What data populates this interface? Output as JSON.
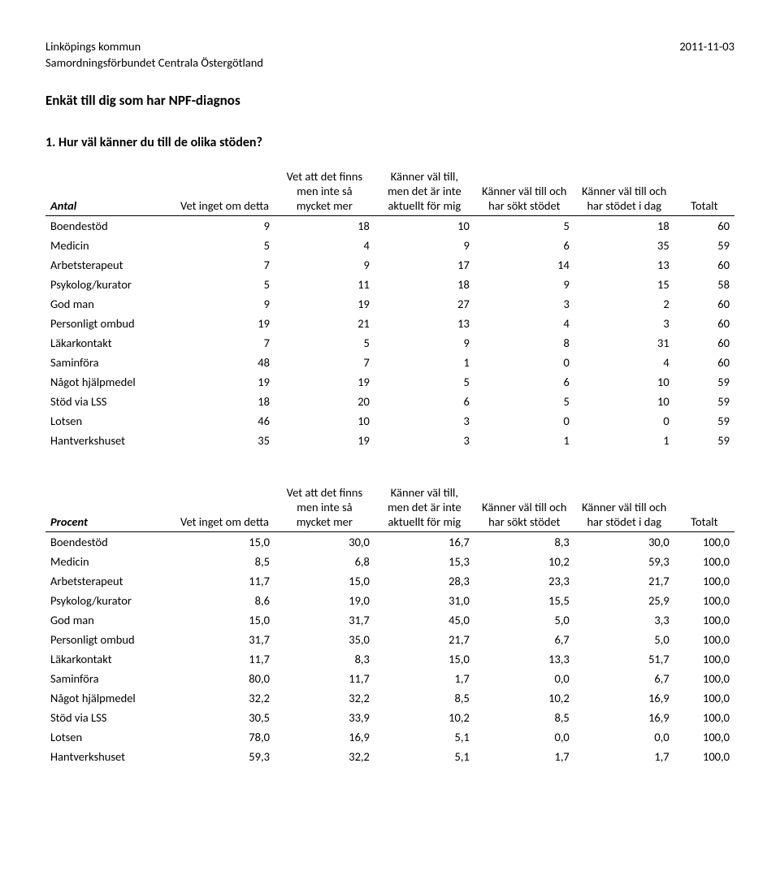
{
  "header": {
    "org_line1": "Linköpings kommun",
    "org_line2": "Samordningsförbundet Centrala Östergötland",
    "date": "2011-11-03",
    "survey_title": "Enkät till dig som har NPF-diagnos",
    "question": "1. Hur väl känner du till de olika stöden?"
  },
  "columns": {
    "c1": "Vet inget om detta",
    "c2": "Vet att det finns men inte så mycket mer",
    "c3": "Känner väl till, men det är inte aktuellt för mig",
    "c4": "Känner väl till och har sökt stödet",
    "c5": "Känner väl till och har stödet i dag",
    "total": "Totalt"
  },
  "tables": {
    "antal": {
      "corner": "Antal",
      "rows": [
        {
          "label": "Boendestöd",
          "v": [
            "9",
            "18",
            "10",
            "5",
            "18",
            "60"
          ]
        },
        {
          "label": "Medicin",
          "v": [
            "5",
            "4",
            "9",
            "6",
            "35",
            "59"
          ]
        },
        {
          "label": "Arbetsterapeut",
          "v": [
            "7",
            "9",
            "17",
            "14",
            "13",
            "60"
          ]
        },
        {
          "label": "Psykolog/kurator",
          "v": [
            "5",
            "11",
            "18",
            "9",
            "15",
            "58"
          ]
        },
        {
          "label": "God man",
          "v": [
            "9",
            "19",
            "27",
            "3",
            "2",
            "60"
          ]
        },
        {
          "label": "Personligt ombud",
          "v": [
            "19",
            "21",
            "13",
            "4",
            "3",
            "60"
          ]
        },
        {
          "label": "Läkarkontakt",
          "v": [
            "7",
            "5",
            "9",
            "8",
            "31",
            "60"
          ]
        },
        {
          "label": "Saminföra",
          "v": [
            "48",
            "7",
            "1",
            "0",
            "4",
            "60"
          ]
        },
        {
          "label": "Något hjälpmedel",
          "v": [
            "19",
            "19",
            "5",
            "6",
            "10",
            "59"
          ]
        },
        {
          "label": "Stöd via LSS",
          "v": [
            "18",
            "20",
            "6",
            "5",
            "10",
            "59"
          ]
        },
        {
          "label": "Lotsen",
          "v": [
            "46",
            "10",
            "3",
            "0",
            "0",
            "59"
          ]
        },
        {
          "label": "Hantverkshuset",
          "v": [
            "35",
            "19",
            "3",
            "1",
            "1",
            "59"
          ]
        }
      ]
    },
    "procent": {
      "corner": "Procent",
      "rows": [
        {
          "label": "Boendestöd",
          "v": [
            "15,0",
            "30,0",
            "16,7",
            "8,3",
            "30,0",
            "100,0"
          ]
        },
        {
          "label": "Medicin",
          "v": [
            "8,5",
            "6,8",
            "15,3",
            "10,2",
            "59,3",
            "100,0"
          ]
        },
        {
          "label": "Arbetsterapeut",
          "v": [
            "11,7",
            "15,0",
            "28,3",
            "23,3",
            "21,7",
            "100,0"
          ]
        },
        {
          "label": "Psykolog/kurator",
          "v": [
            "8,6",
            "19,0",
            "31,0",
            "15,5",
            "25,9",
            "100,0"
          ]
        },
        {
          "label": "God man",
          "v": [
            "15,0",
            "31,7",
            "45,0",
            "5,0",
            "3,3",
            "100,0"
          ]
        },
        {
          "label": "Personligt ombud",
          "v": [
            "31,7",
            "35,0",
            "21,7",
            "6,7",
            "5,0",
            "100,0"
          ]
        },
        {
          "label": "Läkarkontakt",
          "v": [
            "11,7",
            "8,3",
            "15,0",
            "13,3",
            "51,7",
            "100,0"
          ]
        },
        {
          "label": "Saminföra",
          "v": [
            "80,0",
            "11,7",
            "1,7",
            "0,0",
            "6,7",
            "100,0"
          ]
        },
        {
          "label": "Något hjälpmedel",
          "v": [
            "32,2",
            "32,2",
            "8,5",
            "10,2",
            "16,9",
            "100,0"
          ]
        },
        {
          "label": "Stöd via LSS",
          "v": [
            "30,5",
            "33,9",
            "10,2",
            "8,5",
            "16,9",
            "100,0"
          ]
        },
        {
          "label": "Lotsen",
          "v": [
            "78,0",
            "16,9",
            "5,1",
            "0,0",
            "0,0",
            "100,0"
          ]
        },
        {
          "label": "Hantverkshuset",
          "v": [
            "59,3",
            "32,2",
            "5,1",
            "1,7",
            "1,7",
            "100,0"
          ]
        }
      ]
    }
  }
}
